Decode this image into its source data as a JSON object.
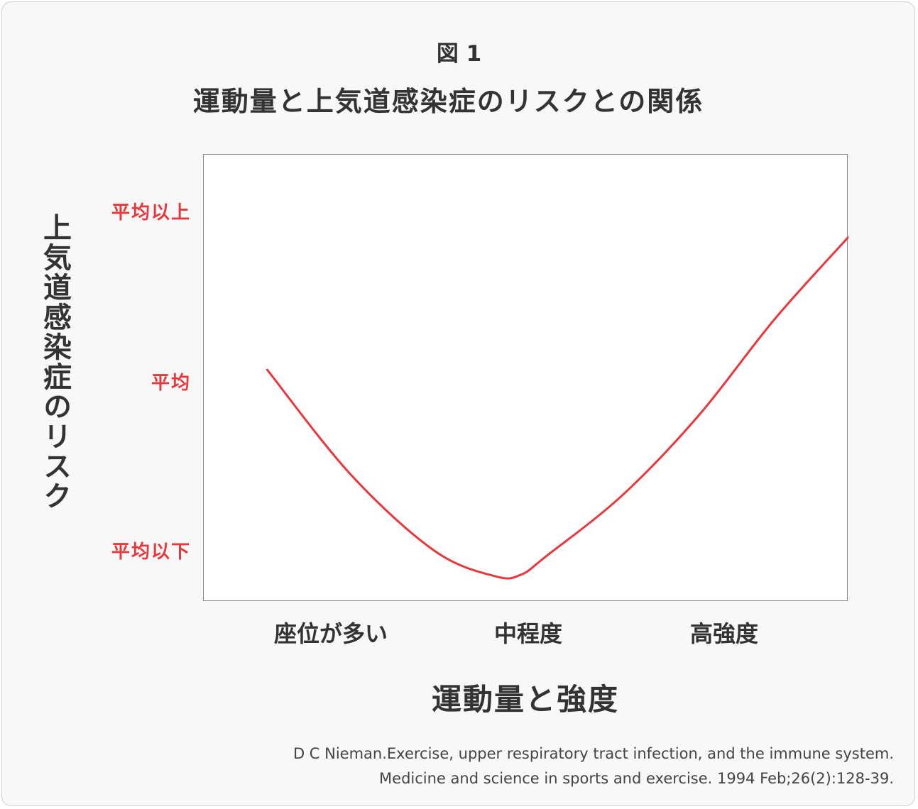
{
  "figure_label": "図 1",
  "colors": {
    "curve": "#e8383d",
    "tick_text": "#e8383d",
    "text": "#333333"
  },
  "citation": {
    "line1": "D C Nieman.Exercise, upper respiratory tract infection, and the immune system.",
    "line2": "Medicine and science in sports and exercise. 1994 Feb;26(2):128-39."
  },
  "chart_data": {
    "type": "line",
    "title": "運動量と上気道感染症のリスクとの関係",
    "xlabel": "運動量と強度",
    "ylabel": "上気道感染症のリスク",
    "categories": [
      "座位が多い",
      "中程度",
      "高強度"
    ],
    "y_ticks": [
      "平均以下",
      "平均",
      "平均以上"
    ],
    "y_tick_values": [
      0,
      1,
      2
    ],
    "xlim": [
      -0.25,
      2.29
    ],
    "ylim": [
      -0.15,
      2.49
    ],
    "grid": false,
    "series": [
      {
        "x": [
          0.0,
          0.33,
          0.66,
          0.9,
          1.0,
          1.1,
          1.4,
          1.7,
          2.0,
          2.3
        ],
        "values": [
          1.22,
          0.6,
          0.15,
          0.0,
          0.01,
          0.12,
          0.48,
          0.95,
          1.52,
          2.02
        ]
      }
    ]
  }
}
